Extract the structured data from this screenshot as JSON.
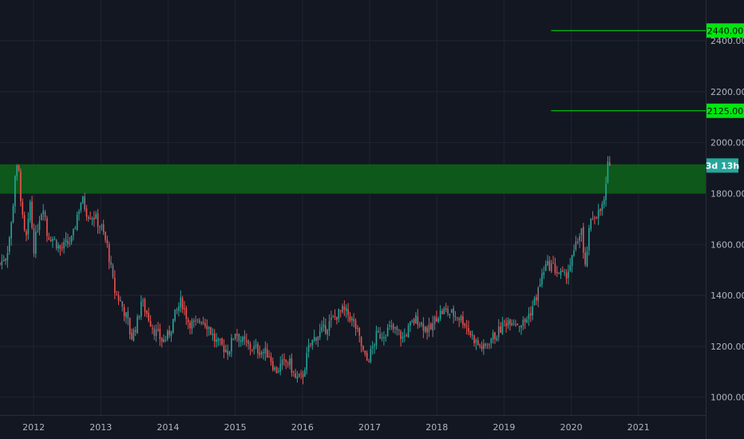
{
  "chart_data": {
    "type": "candlestick",
    "title": "",
    "xlabel": "",
    "ylabel": "",
    "ylim": [
      930,
      2560
    ],
    "xlim": [
      2011.5,
      2022.0
    ],
    "y_ticks": [
      "1000.00",
      "1200.00",
      "1400.00",
      "1600.00",
      "1800.00",
      "2000.00",
      "2200.00",
      "2400.00"
    ],
    "x_ticks": [
      "2012",
      "2013",
      "2014",
      "2015",
      "2016",
      "2017",
      "2018",
      "2019",
      "2020",
      "2021"
    ],
    "x_tick_positions": [
      2012,
      2013,
      2014,
      2015,
      2016,
      2017,
      2018,
      2019,
      2020,
      2021
    ],
    "zone": {
      "from": 1800,
      "to": 1915,
      "color": "#0d5c1a"
    },
    "target_lines": [
      {
        "value": 2440,
        "label": "2440.00",
        "start_x": 2019.7,
        "color": "#00e60f"
      },
      {
        "value": 2125,
        "label": "2125.00",
        "start_x": 2019.7,
        "color": "#00e60f"
      }
    ],
    "countdown": {
      "label": "3d 13h",
      "value": 1910,
      "color": "#26a69a"
    },
    "close_path": [
      [
        2011.5,
        1525
      ],
      [
        2011.6,
        1560
      ],
      [
        2011.68,
        1700
      ],
      [
        2011.73,
        1900
      ],
      [
        2011.78,
        1880
      ],
      [
        2011.85,
        1650
      ],
      [
        2011.9,
        1620
      ],
      [
        2011.95,
        1770
      ],
      [
        2012.0,
        1580
      ],
      [
        2012.08,
        1700
      ],
      [
        2012.15,
        1760
      ],
      [
        2012.2,
        1640
      ],
      [
        2012.3,
        1620
      ],
      [
        2012.4,
        1580
      ],
      [
        2012.48,
        1600
      ],
      [
        2012.58,
        1620
      ],
      [
        2012.65,
        1720
      ],
      [
        2012.72,
        1780
      ],
      [
        2012.8,
        1720
      ],
      [
        2012.9,
        1710
      ],
      [
        2013.0,
        1670
      ],
      [
        2013.1,
        1590
      ],
      [
        2013.2,
        1420
      ],
      [
        2013.3,
        1370
      ],
      [
        2013.4,
        1300
      ],
      [
        2013.45,
        1230
      ],
      [
        2013.55,
        1300
      ],
      [
        2013.6,
        1380
      ],
      [
        2013.7,
        1320
      ],
      [
        2013.8,
        1260
      ],
      [
        2013.92,
        1220
      ],
      [
        2014.0,
        1240
      ],
      [
        2014.1,
        1320
      ],
      [
        2014.2,
        1380
      ],
      [
        2014.3,
        1300
      ],
      [
        2014.4,
        1280
      ],
      [
        2014.5,
        1310
      ],
      [
        2014.6,
        1280
      ],
      [
        2014.7,
        1220
      ],
      [
        2014.8,
        1200
      ],
      [
        2014.9,
        1180
      ],
      [
        2015.0,
        1260
      ],
      [
        2015.1,
        1220
      ],
      [
        2015.2,
        1200
      ],
      [
        2015.3,
        1190
      ],
      [
        2015.4,
        1180
      ],
      [
        2015.5,
        1170
      ],
      [
        2015.6,
        1100
      ],
      [
        2015.7,
        1130
      ],
      [
        2015.8,
        1140
      ],
      [
        2015.9,
        1070
      ],
      [
        2016.0,
        1080
      ],
      [
        2016.1,
        1200
      ],
      [
        2016.2,
        1240
      ],
      [
        2016.3,
        1260
      ],
      [
        2016.4,
        1290
      ],
      [
        2016.5,
        1320
      ],
      [
        2016.6,
        1340
      ],
      [
        2016.7,
        1320
      ],
      [
        2016.8,
        1270
      ],
      [
        2016.9,
        1180
      ],
      [
        2016.95,
        1140
      ],
      [
        2017.0,
        1160
      ],
      [
        2017.1,
        1240
      ],
      [
        2017.2,
        1250
      ],
      [
        2017.3,
        1270
      ],
      [
        2017.4,
        1260
      ],
      [
        2017.5,
        1230
      ],
      [
        2017.6,
        1280
      ],
      [
        2017.7,
        1310
      ],
      [
        2017.8,
        1280
      ],
      [
        2017.9,
        1260
      ],
      [
        2018.0,
        1320
      ],
      [
        2018.1,
        1340
      ],
      [
        2018.2,
        1330
      ],
      [
        2018.3,
        1320
      ],
      [
        2018.4,
        1300
      ],
      [
        2018.5,
        1250
      ],
      [
        2018.6,
        1210
      ],
      [
        2018.7,
        1190
      ],
      [
        2018.8,
        1230
      ],
      [
        2018.9,
        1250
      ],
      [
        2019.0,
        1290
      ],
      [
        2019.1,
        1310
      ],
      [
        2019.2,
        1290
      ],
      [
        2019.3,
        1290
      ],
      [
        2019.4,
        1340
      ],
      [
        2019.5,
        1410
      ],
      [
        2019.6,
        1510
      ],
      [
        2019.7,
        1520
      ],
      [
        2019.8,
        1490
      ],
      [
        2019.9,
        1470
      ],
      [
        2020.0,
        1530
      ],
      [
        2020.1,
        1620
      ],
      [
        2020.15,
        1670
      ],
      [
        2020.2,
        1480
      ],
      [
        2020.25,
        1620
      ],
      [
        2020.3,
        1700
      ],
      [
        2020.35,
        1720
      ],
      [
        2020.4,
        1720
      ],
      [
        2020.45,
        1740
      ],
      [
        2020.5,
        1780
      ],
      [
        2020.53,
        1860
      ],
      [
        2020.56,
        1960
      ],
      [
        2020.58,
        1910
      ]
    ]
  }
}
